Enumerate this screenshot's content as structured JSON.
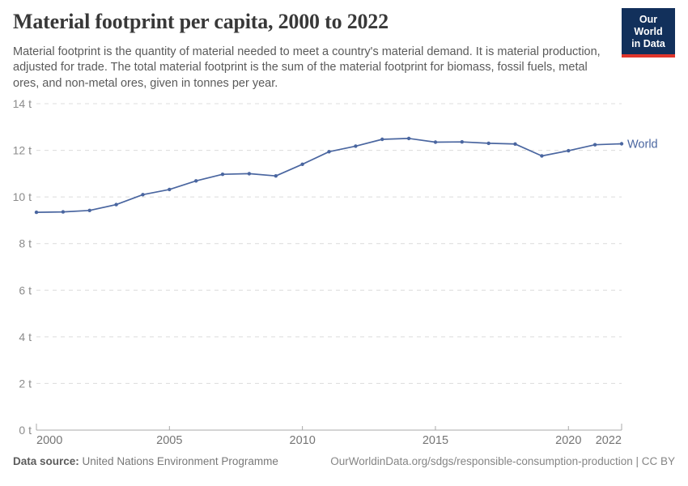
{
  "header": {
    "title": "Material footprint per capita, 2000 to 2022",
    "subtitle": "Material footprint is the quantity of material needed to meet a country's material demand. It is material production, adjusted for trade. The total material footprint is the sum of the material footprint for biomass, fossil fuels, metal ores, and non-metal ores, given in tonnes per year.",
    "logo": {
      "line1": "Our World",
      "line2": "in Data",
      "bg_color": "#12305b",
      "bar_color": "#e0362c",
      "text_color": "#ffffff"
    }
  },
  "chart_data": {
    "type": "line",
    "title": "Material footprint per capita, 2000 to 2022",
    "x": [
      2000,
      2001,
      2002,
      2003,
      2004,
      2005,
      2006,
      2007,
      2008,
      2009,
      2010,
      2011,
      2012,
      2013,
      2014,
      2015,
      2016,
      2017,
      2018,
      2019,
      2020,
      2021,
      2022
    ],
    "series": [
      {
        "name": "World",
        "color": "#4a66a0",
        "values": [
          9.34,
          9.36,
          9.42,
          9.67,
          10.1,
          10.32,
          10.69,
          10.97,
          11.0,
          10.9,
          11.4,
          11.94,
          12.18,
          12.47,
          12.51,
          12.35,
          12.36,
          12.3,
          12.27,
          11.76,
          11.98,
          12.24,
          12.28
        ]
      }
    ],
    "ylim": [
      0,
      14
    ],
    "yticks": [
      0,
      2,
      4,
      6,
      8,
      10,
      12,
      14
    ],
    "ytick_suffix": " t",
    "xticks": [
      2000,
      2005,
      2010,
      2015,
      2020,
      2022
    ],
    "grid": "horizontal-dashed",
    "legend": "end-of-line-label",
    "colors": {
      "grid": "#dcdcdc",
      "axis": "#a9a9a9",
      "ytick_label": "#8c8c8c",
      "xtick_label": "#757575"
    }
  },
  "footer": {
    "source_label": "Data source:",
    "source_value": "United Nations Environment Programme",
    "credit": "OurWorldinData.org/sdgs/responsible-consumption-production | CC BY"
  }
}
